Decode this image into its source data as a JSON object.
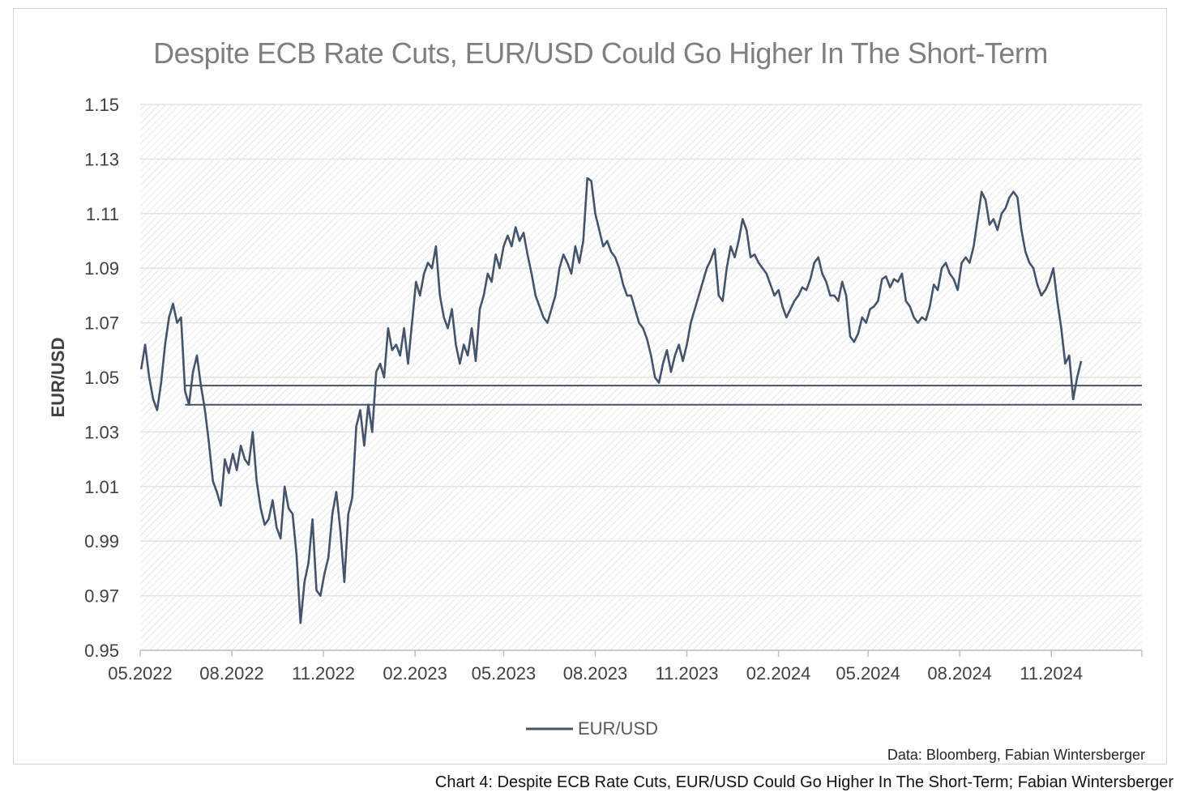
{
  "caption": "Chart 4: Despite ECB Rate Cuts, EUR/USD Could Go Higher In The Short-Term; Fabian Wintersberger",
  "source_note": "Data: Bloomberg, Fabian Wintersberger",
  "colors": {
    "line": "#44546a",
    "title": "#7f7f7f",
    "tick": "#404040",
    "hatch": "#d9d9d9"
  },
  "chart_data": {
    "type": "line",
    "title": "Despite ECB Rate Cuts, EUR/USD Could Go Higher In The Short-Term",
    "xlabel": "",
    "ylabel": "EUR/USD",
    "ylim": [
      0.95,
      1.15
    ],
    "yticks": [
      "1.15",
      "1.13",
      "1.11",
      "1.09",
      "1.07",
      "1.05",
      "1.03",
      "1.01",
      "0.99",
      "0.97",
      "0.95"
    ],
    "xlim": [
      "2022-05-01",
      "2025-01-31"
    ],
    "xticks": [
      {
        "date": "2022-05-01",
        "label": "05.2022"
      },
      {
        "date": "2022-08-01",
        "label": "08.2022"
      },
      {
        "date": "2022-11-01",
        "label": "11.2022"
      },
      {
        "date": "2023-02-01",
        "label": "02.2023"
      },
      {
        "date": "2023-05-01",
        "label": "05.2023"
      },
      {
        "date": "2023-08-01",
        "label": "08.2023"
      },
      {
        "date": "2023-11-01",
        "label": "11.2023"
      },
      {
        "date": "2024-02-01",
        "label": "02.2024"
      },
      {
        "date": "2024-05-01",
        "label": "05.2024"
      },
      {
        "date": "2024-08-01",
        "label": "08.2024"
      },
      {
        "date": "2024-11-01",
        "label": "11.2024"
      }
    ],
    "legend": {
      "position": "bottom",
      "entries": [
        "EUR/USD"
      ]
    },
    "grid": true,
    "reference_lines": [
      {
        "y": 1.047,
        "from": "2022-06-15",
        "to": "2025-01-31"
      },
      {
        "y": 1.04,
        "from": "2022-06-15",
        "to": "2025-01-31"
      }
    ],
    "series": [
      {
        "name": "EUR/USD",
        "points": [
          [
            "2022-05-02",
            1.053
          ],
          [
            "2022-05-06",
            1.062
          ],
          [
            "2022-05-10",
            1.05
          ],
          [
            "2022-05-14",
            1.042
          ],
          [
            "2022-05-18",
            1.038
          ],
          [
            "2022-05-22",
            1.048
          ],
          [
            "2022-05-26",
            1.062
          ],
          [
            "2022-05-30",
            1.072
          ],
          [
            "2022-06-03",
            1.077
          ],
          [
            "2022-06-07",
            1.07
          ],
          [
            "2022-06-11",
            1.072
          ],
          [
            "2022-06-15",
            1.045
          ],
          [
            "2022-06-19",
            1.04
          ],
          [
            "2022-06-23",
            1.052
          ],
          [
            "2022-06-27",
            1.058
          ],
          [
            "2022-07-01",
            1.047
          ],
          [
            "2022-07-05",
            1.038
          ],
          [
            "2022-07-09",
            1.026
          ],
          [
            "2022-07-13",
            1.012
          ],
          [
            "2022-07-17",
            1.008
          ],
          [
            "2022-07-21",
            1.003
          ],
          [
            "2022-07-25",
            1.02
          ],
          [
            "2022-07-29",
            1.015
          ],
          [
            "2022-08-02",
            1.022
          ],
          [
            "2022-08-06",
            1.016
          ],
          [
            "2022-08-10",
            1.025
          ],
          [
            "2022-08-14",
            1.02
          ],
          [
            "2022-08-18",
            1.018
          ],
          [
            "2022-08-22",
            1.03
          ],
          [
            "2022-08-26",
            1.012
          ],
          [
            "2022-08-30",
            1.002
          ],
          [
            "2022-09-03",
            0.996
          ],
          [
            "2022-09-07",
            0.998
          ],
          [
            "2022-09-11",
            1.005
          ],
          [
            "2022-09-15",
            0.995
          ],
          [
            "2022-09-19",
            0.991
          ],
          [
            "2022-09-23",
            1.01
          ],
          [
            "2022-09-27",
            1.002
          ],
          [
            "2022-10-01",
            1.0
          ],
          [
            "2022-10-05",
            0.985
          ],
          [
            "2022-10-09",
            0.96
          ],
          [
            "2022-10-13",
            0.975
          ],
          [
            "2022-10-17",
            0.982
          ],
          [
            "2022-10-21",
            0.998
          ],
          [
            "2022-10-25",
            0.972
          ],
          [
            "2022-10-29",
            0.97
          ],
          [
            "2022-11-02",
            0.978
          ],
          [
            "2022-11-06",
            0.984
          ],
          [
            "2022-11-10",
            1.0
          ],
          [
            "2022-11-14",
            1.008
          ],
          [
            "2022-11-18",
            0.994
          ],
          [
            "2022-11-22",
            0.975
          ],
          [
            "2022-11-26",
            1.0
          ],
          [
            "2022-11-30",
            1.006
          ],
          [
            "2022-12-04",
            1.032
          ],
          [
            "2022-12-08",
            1.038
          ],
          [
            "2022-12-12",
            1.025
          ],
          [
            "2022-12-16",
            1.04
          ],
          [
            "2022-12-20",
            1.03
          ],
          [
            "2022-12-24",
            1.052
          ],
          [
            "2022-12-28",
            1.055
          ],
          [
            "2023-01-01",
            1.05
          ],
          [
            "2023-01-05",
            1.068
          ],
          [
            "2023-01-09",
            1.06
          ],
          [
            "2023-01-13",
            1.062
          ],
          [
            "2023-01-17",
            1.058
          ],
          [
            "2023-01-21",
            1.068
          ],
          [
            "2023-01-25",
            1.055
          ],
          [
            "2023-01-29",
            1.07
          ],
          [
            "2023-02-02",
            1.085
          ],
          [
            "2023-02-06",
            1.08
          ],
          [
            "2023-02-10",
            1.088
          ],
          [
            "2023-02-14",
            1.092
          ],
          [
            "2023-02-18",
            1.09
          ],
          [
            "2023-02-22",
            1.098
          ],
          [
            "2023-02-26",
            1.08
          ],
          [
            "2023-03-02",
            1.072
          ],
          [
            "2023-03-06",
            1.068
          ],
          [
            "2023-03-10",
            1.075
          ],
          [
            "2023-03-14",
            1.062
          ],
          [
            "2023-03-18",
            1.055
          ],
          [
            "2023-03-22",
            1.062
          ],
          [
            "2023-03-26",
            1.058
          ],
          [
            "2023-03-30",
            1.068
          ],
          [
            "2023-04-03",
            1.056
          ],
          [
            "2023-04-07",
            1.075
          ],
          [
            "2023-04-11",
            1.08
          ],
          [
            "2023-04-15",
            1.088
          ],
          [
            "2023-04-19",
            1.085
          ],
          [
            "2023-04-23",
            1.095
          ],
          [
            "2023-04-27",
            1.09
          ],
          [
            "2023-05-01",
            1.098
          ],
          [
            "2023-05-05",
            1.102
          ],
          [
            "2023-05-09",
            1.098
          ],
          [
            "2023-05-13",
            1.105
          ],
          [
            "2023-05-17",
            1.1
          ],
          [
            "2023-05-21",
            1.103
          ],
          [
            "2023-05-25",
            1.095
          ],
          [
            "2023-05-29",
            1.088
          ],
          [
            "2023-06-02",
            1.08
          ],
          [
            "2023-06-06",
            1.076
          ],
          [
            "2023-06-10",
            1.072
          ],
          [
            "2023-06-14",
            1.07
          ],
          [
            "2023-06-18",
            1.075
          ],
          [
            "2023-06-22",
            1.08
          ],
          [
            "2023-06-26",
            1.09
          ],
          [
            "2023-06-30",
            1.095
          ],
          [
            "2023-07-04",
            1.092
          ],
          [
            "2023-07-08",
            1.088
          ],
          [
            "2023-07-12",
            1.098
          ],
          [
            "2023-07-16",
            1.092
          ],
          [
            "2023-07-20",
            1.1
          ],
          [
            "2023-07-24",
            1.123
          ],
          [
            "2023-07-28",
            1.122
          ],
          [
            "2023-08-01",
            1.11
          ],
          [
            "2023-08-05",
            1.104
          ],
          [
            "2023-08-09",
            1.098
          ],
          [
            "2023-08-13",
            1.1
          ],
          [
            "2023-08-17",
            1.096
          ],
          [
            "2023-08-21",
            1.094
          ],
          [
            "2023-08-25",
            1.09
          ],
          [
            "2023-08-29",
            1.084
          ],
          [
            "2023-09-02",
            1.08
          ],
          [
            "2023-09-06",
            1.08
          ],
          [
            "2023-09-10",
            1.075
          ],
          [
            "2023-09-14",
            1.07
          ],
          [
            "2023-09-18",
            1.068
          ],
          [
            "2023-09-22",
            1.064
          ],
          [
            "2023-09-26",
            1.058
          ],
          [
            "2023-09-30",
            1.05
          ],
          [
            "2023-10-04",
            1.048
          ],
          [
            "2023-10-08",
            1.055
          ],
          [
            "2023-10-12",
            1.06
          ],
          [
            "2023-10-16",
            1.052
          ],
          [
            "2023-10-20",
            1.058
          ],
          [
            "2023-10-24",
            1.062
          ],
          [
            "2023-10-28",
            1.056
          ],
          [
            "2023-11-01",
            1.062
          ],
          [
            "2023-11-05",
            1.07
          ],
          [
            "2023-11-09",
            1.075
          ],
          [
            "2023-11-13",
            1.08
          ],
          [
            "2023-11-17",
            1.085
          ],
          [
            "2023-11-21",
            1.09
          ],
          [
            "2023-11-25",
            1.093
          ],
          [
            "2023-11-29",
            1.097
          ],
          [
            "2023-12-03",
            1.08
          ],
          [
            "2023-12-07",
            1.078
          ],
          [
            "2023-12-11",
            1.09
          ],
          [
            "2023-12-15",
            1.098
          ],
          [
            "2023-12-19",
            1.094
          ],
          [
            "2023-12-23",
            1.1
          ],
          [
            "2023-12-27",
            1.108
          ],
          [
            "2023-12-31",
            1.104
          ],
          [
            "2024-01-04",
            1.094
          ],
          [
            "2024-01-08",
            1.095
          ],
          [
            "2024-01-12",
            1.092
          ],
          [
            "2024-01-16",
            1.09
          ],
          [
            "2024-01-20",
            1.088
          ],
          [
            "2024-01-24",
            1.084
          ],
          [
            "2024-01-28",
            1.08
          ],
          [
            "2024-02-01",
            1.082
          ],
          [
            "2024-02-05",
            1.076
          ],
          [
            "2024-02-09",
            1.072
          ],
          [
            "2024-02-13",
            1.075
          ],
          [
            "2024-02-17",
            1.078
          ],
          [
            "2024-02-21",
            1.08
          ],
          [
            "2024-02-25",
            1.083
          ],
          [
            "2024-02-29",
            1.082
          ],
          [
            "2024-03-04",
            1.086
          ],
          [
            "2024-03-08",
            1.092
          ],
          [
            "2024-03-12",
            1.094
          ],
          [
            "2024-03-16",
            1.088
          ],
          [
            "2024-03-20",
            1.085
          ],
          [
            "2024-03-24",
            1.08
          ],
          [
            "2024-03-28",
            1.08
          ],
          [
            "2024-04-01",
            1.078
          ],
          [
            "2024-04-05",
            1.085
          ],
          [
            "2024-04-09",
            1.08
          ],
          [
            "2024-04-13",
            1.065
          ],
          [
            "2024-04-17",
            1.063
          ],
          [
            "2024-04-21",
            1.066
          ],
          [
            "2024-04-25",
            1.072
          ],
          [
            "2024-04-29",
            1.07
          ],
          [
            "2024-05-03",
            1.075
          ],
          [
            "2024-05-07",
            1.076
          ],
          [
            "2024-05-11",
            1.078
          ],
          [
            "2024-05-15",
            1.086
          ],
          [
            "2024-05-19",
            1.087
          ],
          [
            "2024-05-23",
            1.083
          ],
          [
            "2024-05-27",
            1.086
          ],
          [
            "2024-05-31",
            1.085
          ],
          [
            "2024-06-04",
            1.088
          ],
          [
            "2024-06-08",
            1.078
          ],
          [
            "2024-06-12",
            1.076
          ],
          [
            "2024-06-16",
            1.072
          ],
          [
            "2024-06-20",
            1.07
          ],
          [
            "2024-06-24",
            1.072
          ],
          [
            "2024-06-28",
            1.071
          ],
          [
            "2024-07-02",
            1.076
          ],
          [
            "2024-07-06",
            1.084
          ],
          [
            "2024-07-10",
            1.082
          ],
          [
            "2024-07-14",
            1.09
          ],
          [
            "2024-07-18",
            1.092
          ],
          [
            "2024-07-22",
            1.088
          ],
          [
            "2024-07-26",
            1.086
          ],
          [
            "2024-07-30",
            1.082
          ],
          [
            "2024-08-03",
            1.092
          ],
          [
            "2024-08-07",
            1.094
          ],
          [
            "2024-08-11",
            1.092
          ],
          [
            "2024-08-15",
            1.098
          ],
          [
            "2024-08-19",
            1.108
          ],
          [
            "2024-08-23",
            1.118
          ],
          [
            "2024-08-27",
            1.115
          ],
          [
            "2024-08-31",
            1.106
          ],
          [
            "2024-09-04",
            1.108
          ],
          [
            "2024-09-08",
            1.104
          ],
          [
            "2024-09-12",
            1.11
          ],
          [
            "2024-09-16",
            1.112
          ],
          [
            "2024-09-20",
            1.116
          ],
          [
            "2024-09-24",
            1.118
          ],
          [
            "2024-09-28",
            1.116
          ],
          [
            "2024-10-02",
            1.104
          ],
          [
            "2024-10-06",
            1.096
          ],
          [
            "2024-10-10",
            1.092
          ],
          [
            "2024-10-14",
            1.09
          ],
          [
            "2024-10-18",
            1.084
          ],
          [
            "2024-10-22",
            1.08
          ],
          [
            "2024-10-26",
            1.082
          ],
          [
            "2024-10-30",
            1.085
          ],
          [
            "2024-11-03",
            1.09
          ],
          [
            "2024-11-07",
            1.078
          ],
          [
            "2024-11-11",
            1.068
          ],
          [
            "2024-11-15",
            1.055
          ],
          [
            "2024-11-19",
            1.058
          ],
          [
            "2024-11-23",
            1.042
          ],
          [
            "2024-11-27",
            1.05
          ],
          [
            "2024-12-01",
            1.056
          ]
        ]
      }
    ]
  }
}
